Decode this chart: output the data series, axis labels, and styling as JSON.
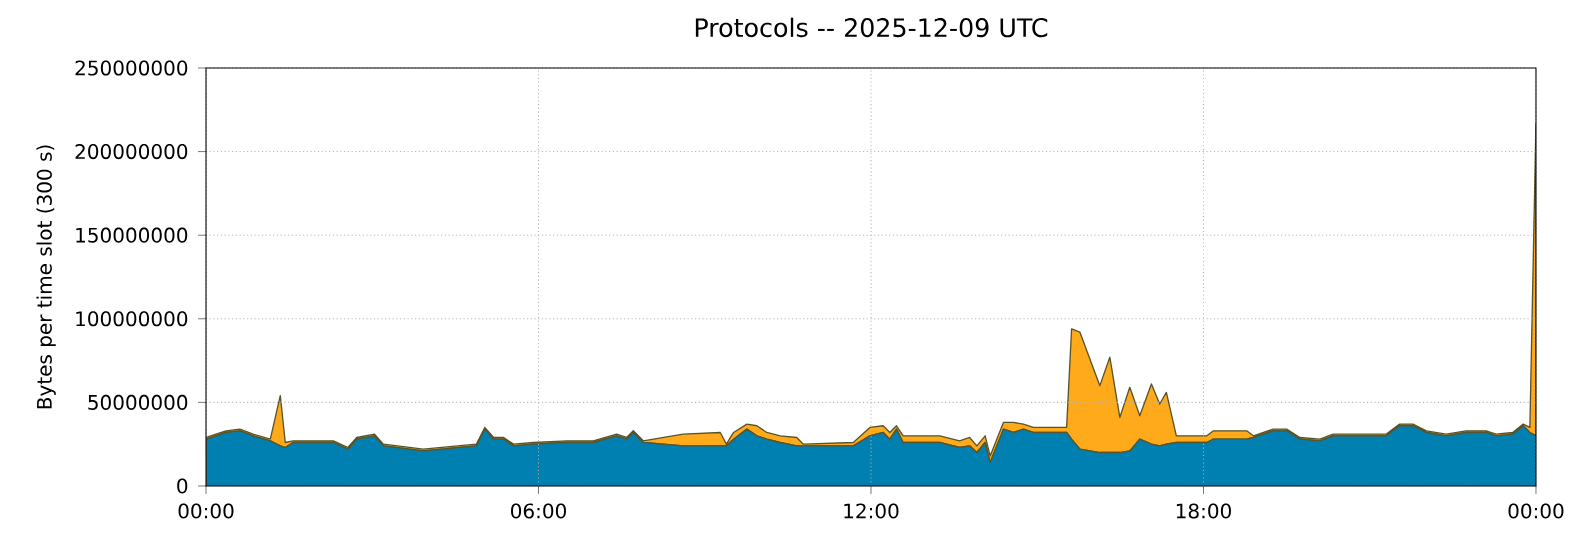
{
  "chart_data": {
    "type": "area",
    "stacked": true,
    "title": "Protocols -- 2025-12-09 UTC",
    "ylabel": "Bytes per time slot (300 s)",
    "x": [
      0,
      0.36,
      0.61,
      0.85,
      1.16,
      1.34,
      1.43,
      1.57,
      2.3,
      2.56,
      2.72,
      3.04,
      3.2,
      3.92,
      4.88,
      5.03,
      5.19,
      5.37,
      5.55,
      5.91,
      6.51,
      6.99,
      7.41,
      7.59,
      7.71,
      7.89,
      8.61,
      9.28,
      9.39,
      9.52,
      9.76,
      9.94,
      10.12,
      10.36,
      10.66,
      10.78,
      11.68,
      11.98,
      12.22,
      12.34,
      12.46,
      12.58,
      13.24,
      13.6,
      13.78,
      13.91,
      14.06,
      14.15,
      14.39,
      14.57,
      14.75,
      14.93,
      15.53,
      15.62,
      15.77,
      16.13,
      16.31,
      16.49,
      16.67,
      16.85,
      17.06,
      17.21,
      17.33,
      17.51,
      18.06,
      18.18,
      18.78,
      18.9,
      19.26,
      19.5,
      19.74,
      20.1,
      20.34,
      20.82,
      21.3,
      21.54,
      21.78,
      22.02,
      22.38,
      22.74,
      23.1,
      23.28,
      23.58,
      23.77,
      23.89,
      24
    ],
    "series": [
      {
        "color": "#0080b0",
        "values": [
          28000000,
          32000000,
          33000000,
          30000000,
          27000000,
          24000000,
          23000000,
          26000000,
          26000000,
          22000000,
          28000000,
          30000000,
          24000000,
          21000000,
          24000000,
          34000000,
          28000000,
          28000000,
          24000000,
          25000000,
          26000000,
          26000000,
          30000000,
          28000000,
          32000000,
          26000000,
          24000000,
          24000000,
          24000000,
          28000000,
          34000000,
          30000000,
          28000000,
          26000000,
          24000000,
          24000000,
          24000000,
          30000000,
          32000000,
          28000000,
          34000000,
          26000000,
          26000000,
          23000000,
          24000000,
          20000000,
          26000000,
          14000000,
          34000000,
          32000000,
          34000000,
          32000000,
          32000000,
          28000000,
          22000000,
          20000000,
          20000000,
          20000000,
          21000000,
          28000000,
          25000000,
          24000000,
          25000000,
          26000000,
          26000000,
          28000000,
          28000000,
          29000000,
          33000000,
          33000000,
          28000000,
          27000000,
          30000000,
          30000000,
          30000000,
          36000000,
          36000000,
          32000000,
          30000000,
          32000000,
          32000000,
          30000000,
          31000000,
          36000000,
          32000000,
          30000000
        ]
      },
      {
        "color": "#ffaa1a",
        "values": [
          1000000,
          1000000,
          1000000,
          1000000,
          1000000,
          30000000,
          3000000,
          1000000,
          1000000,
          1000000,
          1000000,
          1000000,
          1000000,
          1000000,
          1000000,
          1000000,
          1000000,
          1000000,
          1000000,
          1000000,
          1000000,
          1000000,
          1000000,
          1000000,
          1000000,
          1000000,
          7000000,
          8000000,
          1000000,
          4000000,
          3000000,
          6000000,
          4000000,
          4000000,
          5000000,
          1000000,
          2000000,
          5000000,
          4000000,
          4000000,
          2000000,
          4000000,
          4000000,
          4000000,
          5000000,
          4000000,
          4000000,
          4000000,
          4000000,
          6000000,
          3000000,
          3000000,
          3000000,
          66000000,
          70000000,
          40000000,
          57000000,
          21000000,
          38000000,
          14000000,
          36000000,
          25000000,
          31000000,
          4000000,
          4000000,
          5000000,
          5000000,
          1000000,
          1000000,
          1000000,
          1000000,
          1000000,
          1000000,
          1000000,
          1000000,
          1000000,
          1000000,
          1000000,
          1000000,
          1000000,
          1000000,
          1000000,
          1000000,
          1000000,
          3000000,
          187000000
        ]
      }
    ],
    "xlim": [
      0,
      24
    ],
    "xticks": [
      {
        "value": 0,
        "label": "00:00"
      },
      {
        "value": 6,
        "label": "06:00"
      },
      {
        "value": 12,
        "label": "12:00"
      },
      {
        "value": 18,
        "label": "18:00"
      },
      {
        "value": 24,
        "label": "00:00"
      }
    ],
    "ylim": [
      0,
      250000000
    ],
    "yticks": [
      0,
      50000000,
      100000000,
      150000000,
      200000000,
      250000000
    ],
    "grid": true
  }
}
